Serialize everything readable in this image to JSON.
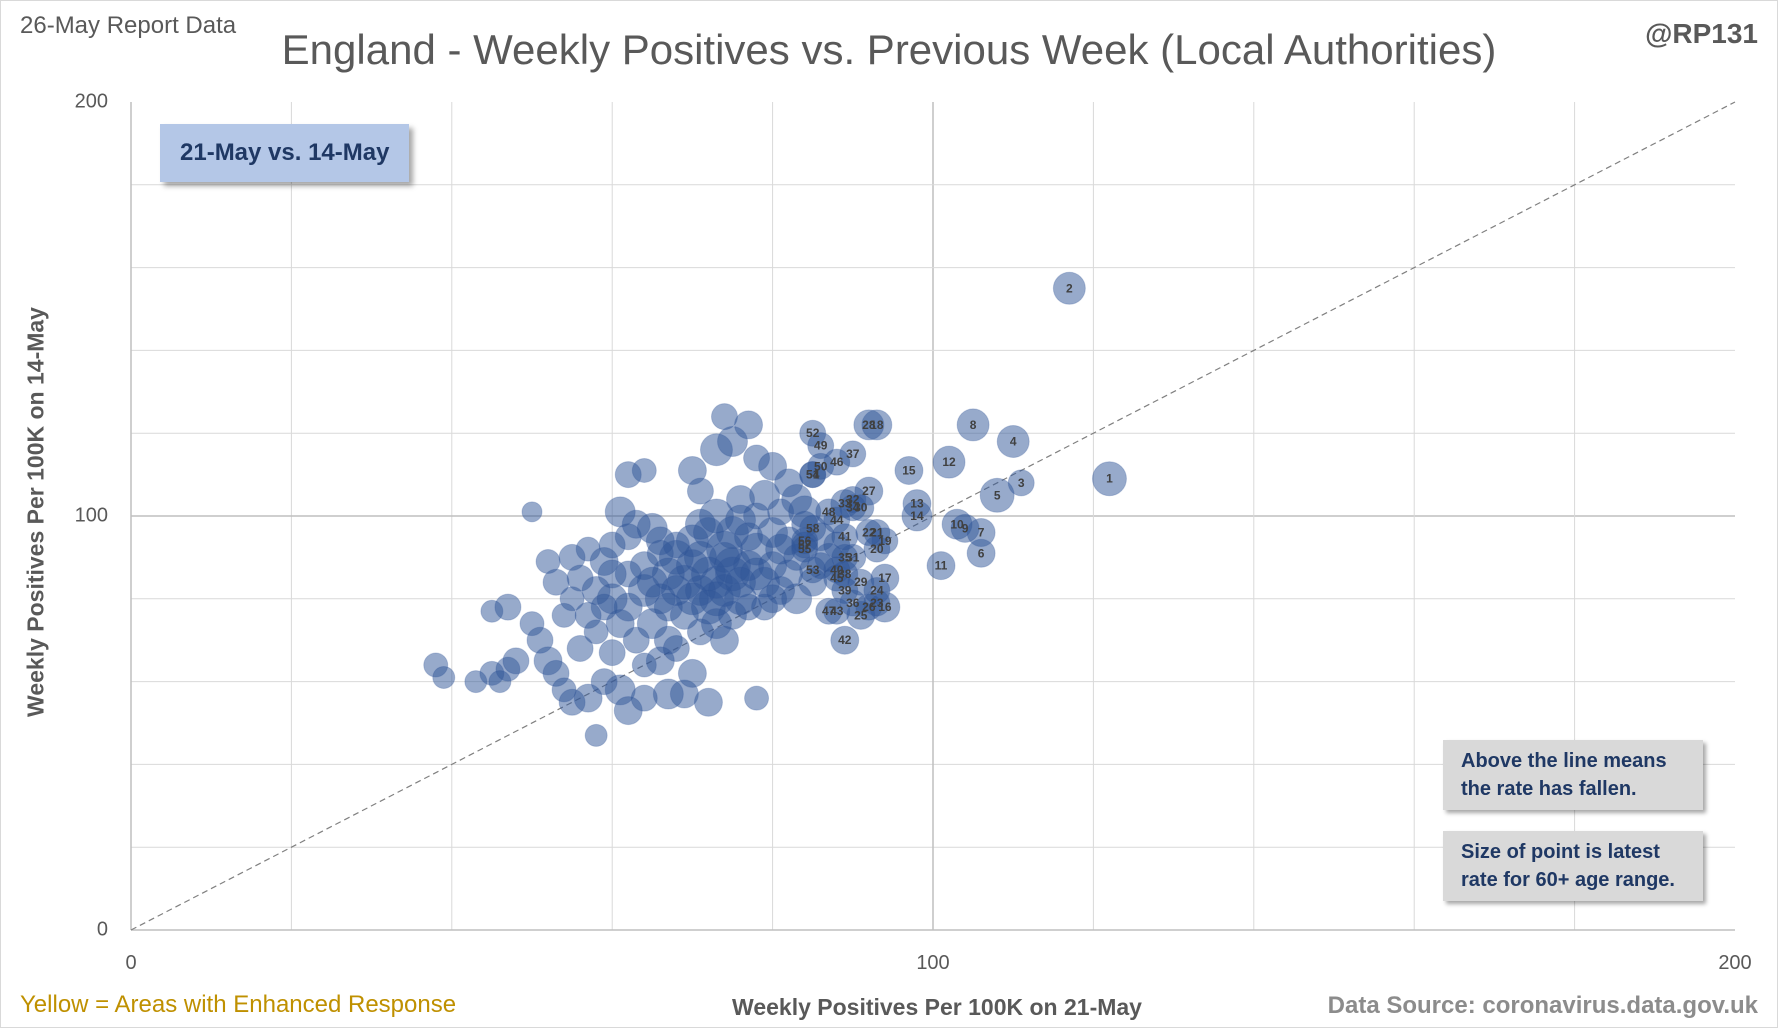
{
  "header": {
    "report_label": "26-May Report Data",
    "author": "@RP131",
    "title": "England - Weekly Positives vs. Previous Week (Local Authorities)"
  },
  "callout": {
    "label": "21-May vs. 14-May"
  },
  "notes": {
    "above_line_1": "Above the line means",
    "above_line_2": "the rate has fallen.",
    "size_1": "Size of point is latest",
    "size_2": "rate for 60+ age range."
  },
  "footer": {
    "left": "Yellow = Areas with Enhanced  Response",
    "right": "Data Source: coronavirus.data.gov.uk"
  },
  "colors": {
    "bubble": "#2f5597",
    "grid": "#d9d9d9",
    "label": "#404040"
  },
  "chart_data": {
    "type": "scatter",
    "title": "England - Weekly Positives vs. Previous Week (Local Authorities)",
    "xlabel": "Weekly Positives Per 100K on 21-May",
    "ylabel": "Weekly Positives Per 100K on 14-May",
    "xlim": [
      0,
      200
    ],
    "ylim": [
      0,
      200
    ],
    "x_tick_labels": [
      "0",
      "100",
      "200"
    ],
    "y_tick_labels": [
      "0",
      "100",
      "200"
    ],
    "grid": true,
    "reference_line": "y = x (dashed)",
    "bubble_size": "latest rate for 60+ age range",
    "labeled_points": [
      {
        "label": "1",
        "x": 122,
        "y": 109,
        "size": 17
      },
      {
        "label": "2",
        "x": 117,
        "y": 155,
        "size": 16
      },
      {
        "label": "3",
        "x": 111,
        "y": 108,
        "size": 13
      },
      {
        "label": "4",
        "x": 110,
        "y": 118,
        "size": 16
      },
      {
        "label": "5",
        "x": 108,
        "y": 105,
        "size": 17
      },
      {
        "label": "6",
        "x": 106,
        "y": 91,
        "size": 14
      },
      {
        "label": "7",
        "x": 106,
        "y": 96,
        "size": 14
      },
      {
        "label": "8",
        "x": 105,
        "y": 122,
        "size": 16
      },
      {
        "label": "9",
        "x": 104,
        "y": 97,
        "size": 14
      },
      {
        "label": "10",
        "x": 103,
        "y": 98,
        "size": 15
      },
      {
        "label": "11",
        "x": 101,
        "y": 88,
        "size": 14
      },
      {
        "label": "12",
        "x": 102,
        "y": 113,
        "size": 16
      },
      {
        "label": "13",
        "x": 98,
        "y": 103,
        "size": 14
      },
      {
        "label": "14",
        "x": 98,
        "y": 100,
        "size": 15
      },
      {
        "label": "15",
        "x": 97,
        "y": 111,
        "size": 14
      },
      {
        "label": "16",
        "x": 94,
        "y": 78,
        "size": 15
      },
      {
        "label": "17",
        "x": 94,
        "y": 85,
        "size": 14
      },
      {
        "label": "18",
        "x": 93,
        "y": 122,
        "size": 15
      },
      {
        "label": "19",
        "x": 94,
        "y": 94,
        "size": 13
      },
      {
        "label": "20",
        "x": 93,
        "y": 92,
        "size": 13
      },
      {
        "label": "21",
        "x": 93,
        "y": 96,
        "size": 13
      },
      {
        "label": "22",
        "x": 92,
        "y": 96,
        "size": 13
      },
      {
        "label": "23",
        "x": 93,
        "y": 79,
        "size": 13
      },
      {
        "label": "24",
        "x": 93,
        "y": 82,
        "size": 13
      },
      {
        "label": "25",
        "x": 91,
        "y": 76,
        "size": 14
      },
      {
        "label": "26",
        "x": 92,
        "y": 78,
        "size": 13
      },
      {
        "label": "27",
        "x": 92,
        "y": 106,
        "size": 14
      },
      {
        "label": "28",
        "x": 92,
        "y": 122,
        "size": 15
      },
      {
        "label": "29",
        "x": 91,
        "y": 84,
        "size": 13
      },
      {
        "label": "30",
        "x": 91,
        "y": 102,
        "size": 13
      },
      {
        "label": "31",
        "x": 90,
        "y": 90,
        "size": 13
      },
      {
        "label": "32",
        "x": 90,
        "y": 104,
        "size": 13
      },
      {
        "label": "33",
        "x": 89,
        "y": 103,
        "size": 14
      },
      {
        "label": "34",
        "x": 90,
        "y": 102,
        "size": 13
      },
      {
        "label": "35",
        "x": 89,
        "y": 90,
        "size": 13
      },
      {
        "label": "36",
        "x": 90,
        "y": 79,
        "size": 13
      },
      {
        "label": "37",
        "x": 90,
        "y": 115,
        "size": 13
      },
      {
        "label": "38",
        "x": 89,
        "y": 86,
        "size": 13
      },
      {
        "label": "39",
        "x": 89,
        "y": 82,
        "size": 13
      },
      {
        "label": "40",
        "x": 88,
        "y": 87,
        "size": 13
      },
      {
        "label": "41",
        "x": 89,
        "y": 95,
        "size": 13
      },
      {
        "label": "42",
        "x": 89,
        "y": 70,
        "size": 14
      },
      {
        "label": "43",
        "x": 88,
        "y": 77,
        "size": 13
      },
      {
        "label": "44",
        "x": 88,
        "y": 99,
        "size": 13
      },
      {
        "label": "45",
        "x": 88,
        "y": 85,
        "size": 13
      },
      {
        "label": "46",
        "x": 88,
        "y": 113,
        "size": 13
      },
      {
        "label": "47",
        "x": 87,
        "y": 77,
        "size": 13
      },
      {
        "label": "48",
        "x": 87,
        "y": 101,
        "size": 13
      },
      {
        "label": "49",
        "x": 86,
        "y": 117,
        "size": 13
      },
      {
        "label": "50",
        "x": 86,
        "y": 112,
        "size": 13
      },
      {
        "label": "51",
        "x": 85,
        "y": 110,
        "size": 13
      },
      {
        "label": "52",
        "x": 85,
        "y": 120,
        "size": 13
      },
      {
        "label": "53",
        "x": 85,
        "y": 87,
        "size": 13
      },
      {
        "label": "54",
        "x": 85,
        "y": 110,
        "size": 13
      },
      {
        "label": "55",
        "x": 84,
        "y": 92,
        "size": 13
      },
      {
        "label": "56",
        "x": 84,
        "y": 94,
        "size": 13
      },
      {
        "label": "57",
        "x": 84,
        "y": 93,
        "size": 13
      },
      {
        "label": "58",
        "x": 85,
        "y": 97,
        "size": 13
      }
    ],
    "unlabeled_points": [
      [
        38,
        64,
        12
      ],
      [
        39,
        61,
        11
      ],
      [
        43,
        60,
        11
      ],
      [
        45,
        62,
        12
      ],
      [
        46,
        60,
        11
      ],
      [
        47,
        63,
        12
      ],
      [
        48,
        65,
        13
      ],
      [
        45,
        77,
        11
      ],
      [
        47,
        78,
        13
      ],
      [
        50,
        74,
        12
      ],
      [
        51,
        70,
        13
      ],
      [
        52,
        65,
        14
      ],
      [
        53,
        62,
        13
      ],
      [
        54,
        58,
        12
      ],
      [
        55,
        55,
        13
      ],
      [
        57,
        56,
        14
      ],
      [
        59,
        60,
        13
      ],
      [
        61,
        58,
        15
      ],
      [
        62,
        53,
        14
      ],
      [
        64,
        56,
        13
      ],
      [
        67,
        57,
        15
      ],
      [
        69,
        57,
        14
      ],
      [
        70,
        62,
        14
      ],
      [
        78,
        56,
        12
      ],
      [
        72,
        55,
        14
      ],
      [
        58,
        47,
        11
      ],
      [
        50,
        101,
        10
      ],
      [
        52,
        89,
        12
      ],
      [
        55,
        90,
        13
      ],
      [
        57,
        92,
        12
      ],
      [
        59,
        89,
        14
      ],
      [
        60,
        93,
        13
      ],
      [
        61,
        101,
        15
      ],
      [
        62,
        110,
        13
      ],
      [
        64,
        111,
        12
      ],
      [
        63,
        98,
        14
      ],
      [
        65,
        97,
        15
      ],
      [
        66,
        94,
        14
      ],
      [
        68,
        93,
        13
      ],
      [
        70,
        111,
        14
      ],
      [
        71,
        106,
        13
      ],
      [
        73,
        116,
        16
      ],
      [
        75,
        118,
        15
      ],
      [
        74,
        124,
        13
      ],
      [
        77,
        122,
        14
      ],
      [
        78,
        114,
        13
      ],
      [
        80,
        112,
        14
      ],
      [
        79,
        105,
        15
      ],
      [
        82,
        108,
        14
      ],
      [
        81,
        101,
        13
      ],
      [
        83,
        104,
        15
      ],
      [
        84,
        101,
        16
      ],
      [
        56,
        85,
        13
      ],
      [
        58,
        82,
        14
      ],
      [
        60,
        80,
        15
      ],
      [
        62,
        78,
        14
      ],
      [
        64,
        82,
        16
      ],
      [
        66,
        80,
        15
      ],
      [
        67,
        86,
        16
      ],
      [
        69,
        84,
        17
      ],
      [
        70,
        88,
        16
      ],
      [
        71,
        82,
        15
      ],
      [
        72,
        78,
        17
      ],
      [
        73,
        84,
        16
      ],
      [
        74,
        90,
        15
      ],
      [
        75,
        86,
        17
      ],
      [
        76,
        80,
        16
      ],
      [
        77,
        88,
        15
      ],
      [
        78,
        92,
        16
      ],
      [
        79,
        84,
        15
      ],
      [
        80,
        88,
        14
      ],
      [
        81,
        92,
        15
      ],
      [
        82,
        86,
        14
      ],
      [
        83,
        90,
        13
      ],
      [
        68,
        90,
        17
      ],
      [
        70,
        94,
        16
      ],
      [
        72,
        96,
        15
      ],
      [
        73,
        100,
        17
      ],
      [
        74,
        92,
        18
      ],
      [
        75,
        96,
        16
      ],
      [
        76,
        99,
        15
      ],
      [
        77,
        95,
        14
      ],
      [
        71,
        98,
        15
      ],
      [
        69,
        76,
        14
      ],
      [
        71,
        72,
        13
      ],
      [
        73,
        74,
        15
      ],
      [
        75,
        76,
        14
      ],
      [
        77,
        78,
        13
      ],
      [
        67,
        70,
        14
      ],
      [
        65,
        74,
        15
      ],
      [
        63,
        70,
        13
      ],
      [
        61,
        74,
        14
      ],
      [
        60,
        67,
        13
      ],
      [
        58,
        72,
        12
      ],
      [
        57,
        76,
        13
      ],
      [
        55,
        80,
        12
      ],
      [
        53,
        84,
        13
      ],
      [
        54,
        76,
        12
      ],
      [
        56,
        68,
        13
      ],
      [
        64,
        88,
        14
      ],
      [
        66,
        91,
        13
      ],
      [
        62,
        86,
        13
      ],
      [
        76,
        104,
        14
      ],
      [
        78,
        100,
        13
      ],
      [
        80,
        96,
        15
      ],
      [
        82,
        94,
        14
      ],
      [
        84,
        98,
        13
      ],
      [
        86,
        95,
        14
      ],
      [
        86,
        88,
        13
      ],
      [
        85,
        84,
        14
      ],
      [
        83,
        80,
        15
      ],
      [
        81,
        82,
        14
      ],
      [
        79,
        78,
        13
      ],
      [
        87,
        90,
        14
      ],
      [
        88,
        93,
        13
      ],
      [
        66,
        65,
        14
      ],
      [
        68,
        68,
        13
      ],
      [
        64,
        64,
        12
      ],
      [
        74,
        70,
        14
      ],
      [
        62,
        95,
        13
      ],
      [
        60,
        86,
        14
      ],
      [
        59,
        78,
        13
      ],
      [
        71,
        90,
        16
      ],
      [
        72,
        86,
        17
      ],
      [
        74,
        82,
        16
      ],
      [
        75,
        88,
        18
      ],
      [
        73,
        80,
        17
      ],
      [
        70,
        80,
        16
      ],
      [
        76,
        84,
        15
      ],
      [
        78,
        86,
        16
      ],
      [
        80,
        80,
        14
      ],
      [
        68,
        82,
        15
      ],
      [
        67,
        78,
        14
      ],
      [
        65,
        84,
        15
      ]
    ]
  }
}
